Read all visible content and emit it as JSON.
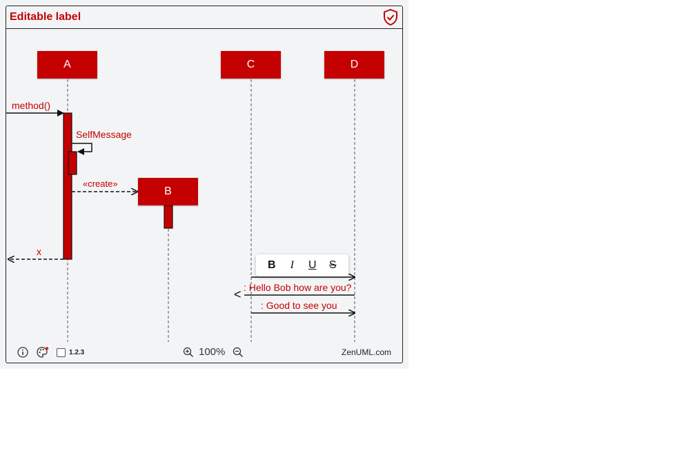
{
  "header": {
    "title": "Editable label",
    "shield_icon": "shield-check-icon"
  },
  "participants": [
    {
      "id": "A",
      "label": "A"
    },
    {
      "id": "B",
      "label": "B"
    },
    {
      "id": "C",
      "label": "C"
    },
    {
      "id": "D",
      "label": "D"
    }
  ],
  "messages": {
    "method": "method()",
    "self": "SelfMessage",
    "create": "«create»",
    "ret": "x",
    "hello": ": Hello Bob how are you?",
    "reply_arrow": "<",
    "good": ": Good to see you"
  },
  "toolbar": {
    "bold": "B",
    "italic": "I",
    "underline": "U",
    "strike": "S"
  },
  "footer": {
    "version": "1.2.3",
    "zoom": "100%",
    "brand": "ZenUML.com",
    "icons": [
      "info-icon",
      "palette-icon",
      "zoom-in-icon",
      "zoom-out-icon"
    ]
  },
  "colors": {
    "accent": "#c40000",
    "background": "#f3f4f6"
  }
}
